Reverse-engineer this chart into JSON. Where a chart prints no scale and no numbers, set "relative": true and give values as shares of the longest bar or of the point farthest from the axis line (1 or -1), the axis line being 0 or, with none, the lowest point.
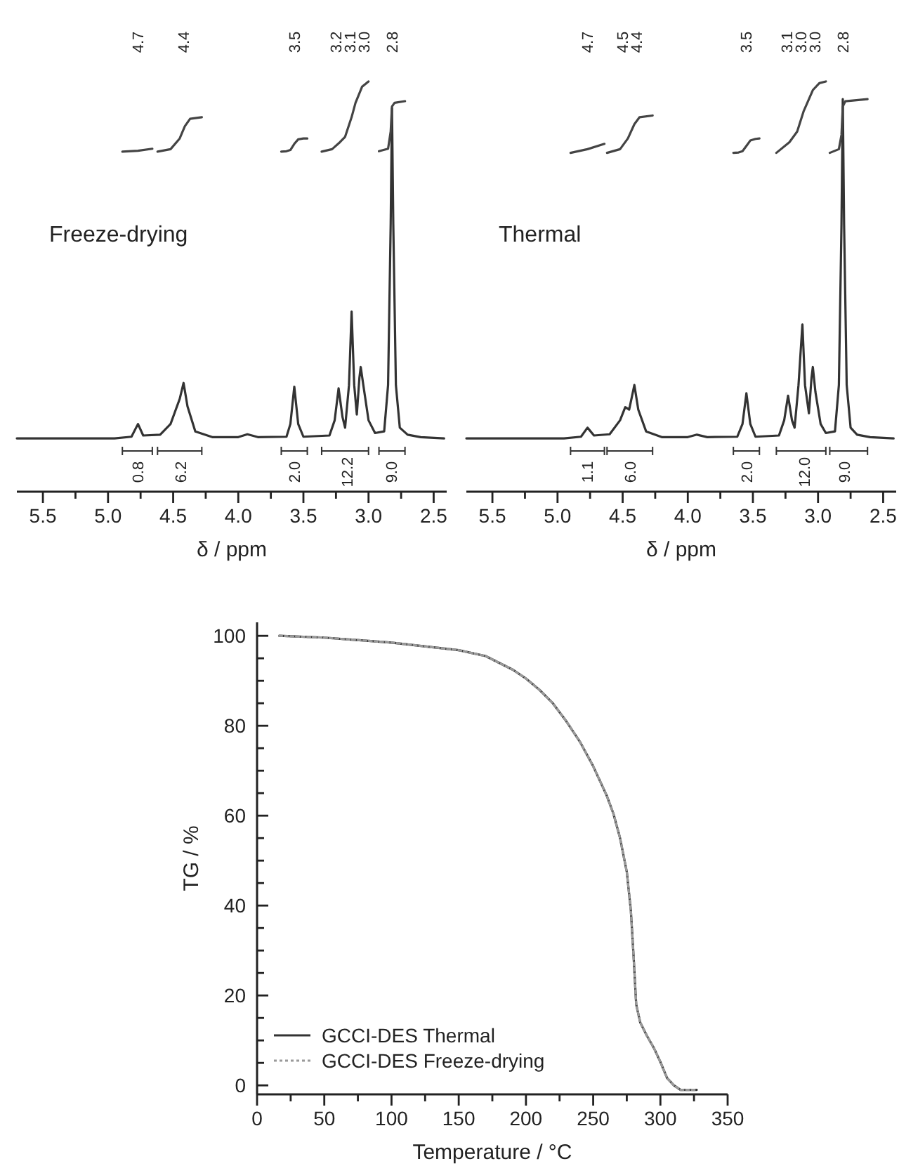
{
  "chart_data": [
    {
      "type": "line",
      "relative": true,
      "xlim": [
        5.7,
        2.4
      ],
      "xticks": [
        5.5,
        {
          "value": 5.25,
          "label": null
        },
        {
          "value": 5,
          "label": "5.0"
        },
        {
          "value": 4.75,
          "label": null
        },
        4.5,
        {
          "value": 4.25,
          "label": null
        },
        {
          "value": 4,
          "label": "4.0"
        },
        {
          "value": 3.75,
          "label": null
        },
        3.5,
        {
          "value": 3.25,
          "label": null
        },
        {
          "value": 3,
          "label": "3.0"
        },
        {
          "value": 2.75,
          "label": null
        },
        2.5
      ],
      "xlabel": "δ / ppm",
      "series": [
        {
          "color": "#333333",
          "x": [
            5.7,
            4.95,
            4.82,
            4.77,
            4.73,
            4.6,
            4.52,
            4.48,
            4.45,
            4.42,
            4.39,
            4.33,
            4.2,
            4.0,
            3.93,
            3.85,
            3.63,
            3.6,
            3.57,
            3.54,
            3.5,
            3.3,
            3.26,
            3.23,
            3.2,
            3.18,
            3.15,
            3.13,
            3.11,
            3.09,
            3.07,
            3.06,
            3.04,
            3.0,
            2.95,
            2.88,
            2.85,
            2.83,
            2.82,
            2.81,
            2.79,
            2.76,
            2.7,
            2.6,
            2.42
          ],
          "values": [
            0.13,
            0.13,
            0.134,
            0.165,
            0.137,
            0.139,
            0.165,
            0.2,
            0.226,
            0.265,
            0.208,
            0.147,
            0.133,
            0.133,
            0.14,
            0.133,
            0.134,
            0.165,
            0.256,
            0.165,
            0.134,
            0.137,
            0.174,
            0.252,
            0.182,
            0.156,
            0.26,
            0.439,
            0.26,
            0.188,
            0.278,
            0.304,
            0.26,
            0.174,
            0.143,
            0.147,
            0.26,
            0.652,
            0.935,
            0.652,
            0.26,
            0.156,
            0.139,
            0.133,
            0.13
          ]
        },
        {
          "color": "#444444",
          "x": [
            4.89,
            4.77,
            4.66,
            4.64,
            4.62,
            4.52,
            4.45,
            4.41,
            4.37,
            4.28,
            3.9,
            3.67,
            3.63,
            3.6,
            3.57,
            3.54,
            3.5,
            3.47,
            3.4,
            3.36,
            3.28,
            3.22,
            3.18,
            3.13,
            3.1,
            3.05,
            3.0,
            2.96,
            2.92,
            2.85,
            2.83,
            2.82,
            2.8,
            2.72
          ],
          "values": [
            0.829,
            0.831,
            0.836,
            null,
            0.829,
            0.835,
            0.861,
            0.891,
            0.909,
            0.913,
            null,
            0.829,
            0.83,
            0.833,
            0.848,
            0.859,
            0.861,
            0.861,
            null,
            0.829,
            0.835,
            0.852,
            0.865,
            0.913,
            0.948,
            0.987,
            1.0,
            null,
            0.83,
            0.836,
            0.878,
            0.939,
            0.948,
            0.952
          ]
        }
      ],
      "annotations": [
        "Freeze-drying",
        "4.7",
        "4.4",
        "3.5",
        "3.2",
        "3.1",
        "3.0",
        "2.8",
        "0.8",
        "6.2",
        "2.0",
        "12.2",
        "9.0"
      ]
    },
    {
      "type": "line",
      "relative": true,
      "xlim": [
        5.7,
        2.4
      ],
      "xticks": [
        5.5,
        {
          "value": 5.25,
          "label": null
        },
        {
          "value": 5,
          "label": "5.0"
        },
        {
          "value": 4.75,
          "label": null
        },
        4.5,
        {
          "value": 4.25,
          "label": null
        },
        {
          "value": 4,
          "label": "4.0"
        },
        {
          "value": 3.75,
          "label": null
        },
        3.5,
        {
          "value": 3.25,
          "label": null
        },
        {
          "value": 3,
          "label": "3.0"
        },
        {
          "value": 2.75,
          "label": null
        },
        2.5
      ],
      "xlabel": "δ / ppm",
      "series": [
        {
          "color": "#333333",
          "x": [
            5.7,
            4.95,
            4.82,
            4.77,
            4.72,
            4.6,
            4.52,
            4.48,
            4.45,
            4.41,
            4.38,
            4.32,
            4.2,
            4.0,
            3.93,
            3.85,
            3.62,
            3.58,
            3.55,
            3.52,
            3.48,
            3.3,
            3.26,
            3.23,
            3.2,
            3.18,
            3.15,
            3.12,
            3.1,
            3.07,
            3.05,
            3.04,
            3.02,
            2.98,
            2.94,
            2.87,
            2.84,
            2.82,
            2.81,
            2.8,
            2.78,
            2.75,
            2.7,
            2.6,
            2.42
          ],
          "values": [
            0.13,
            0.13,
            0.134,
            0.156,
            0.137,
            0.14,
            0.174,
            0.206,
            0.2,
            0.26,
            0.2,
            0.147,
            0.133,
            0.133,
            0.139,
            0.133,
            0.134,
            0.165,
            0.24,
            0.165,
            0.134,
            0.137,
            0.174,
            0.234,
            0.174,
            0.156,
            0.26,
            0.408,
            0.26,
            0.191,
            0.278,
            0.304,
            0.243,
            0.165,
            0.143,
            0.147,
            0.26,
            0.652,
            0.957,
            0.652,
            0.26,
            0.156,
            0.139,
            0.133,
            0.13
          ]
        },
        {
          "color": "#444444",
          "x": [
            4.9,
            4.77,
            4.64,
            4.63,
            4.62,
            4.52,
            4.46,
            4.41,
            4.37,
            4.27,
            3.9,
            3.65,
            3.61,
            3.58,
            3.55,
            3.52,
            3.48,
            3.45,
            3.4,
            3.32,
            3.22,
            3.16,
            3.11,
            3.07,
            3.04,
            2.99,
            2.94,
            2.92,
            2.91,
            2.84,
            2.82,
            2.81,
            2.79,
            2.62
          ],
          "values": [
            0.826,
            0.835,
            0.848,
            null,
            0.826,
            0.835,
            0.861,
            0.896,
            0.913,
            0.917,
            null,
            0.826,
            0.827,
            0.83,
            0.843,
            0.856,
            0.86,
            0.861,
            null,
            0.826,
            0.852,
            0.878,
            0.928,
            0.957,
            0.979,
            0.996,
            1.0,
            null,
            0.826,
            0.835,
            0.87,
            0.939,
            0.952,
            0.957
          ]
        }
      ],
      "annotations": [
        "Thermal",
        "4.7",
        "4.5",
        "4.4",
        "3.5",
        "3.1",
        "3.0",
        "3.0",
        "2.8",
        "1.1",
        "6.0",
        "2.0",
        "12.0",
        "9.0"
      ]
    },
    {
      "type": "line",
      "xlim": [
        0,
        350
      ],
      "ylim": [
        -2,
        103
      ],
      "xticks": [
        0,
        {
          "value": 25,
          "label": null
        },
        50,
        {
          "value": 75,
          "label": null
        },
        100,
        {
          "value": 125,
          "label": null
        },
        150,
        {
          "value": 175,
          "label": null
        },
        200,
        {
          "value": 225,
          "label": null
        },
        250,
        {
          "value": 275,
          "label": null
        },
        300,
        {
          "value": 325,
          "label": null
        },
        350
      ],
      "yticks": [
        0,
        {
          "value": 5,
          "label": null
        },
        {
          "value": 10,
          "label": null
        },
        {
          "value": 15,
          "label": null
        },
        20,
        {
          "value": 25,
          "label": null
        },
        {
          "value": 30,
          "label": null
        },
        {
          "value": 35,
          "label": null
        },
        40,
        {
          "value": 45,
          "label": null
        },
        {
          "value": 50,
          "label": null
        },
        {
          "value": 55,
          "label": null
        },
        60,
        {
          "value": 65,
          "label": null
        },
        {
          "value": 70,
          "label": null
        },
        {
          "value": 75,
          "label": null
        },
        80,
        {
          "value": 85,
          "label": null
        },
        {
          "value": 90,
          "label": null
        },
        {
          "value": 95,
          "label": null
        },
        100
      ],
      "xlabel": "Temperature / °C",
      "ylabel": "TG / %",
      "legend": "bottom left",
      "x": [
        16.5,
        50,
        100,
        150,
        170,
        190,
        200,
        210,
        220,
        230,
        240,
        250,
        260,
        265,
        270,
        275,
        278,
        280,
        282,
        285,
        290,
        295,
        300,
        305,
        310,
        315,
        320,
        327
      ],
      "series": [
        {
          "name": "GCCI-DES Thermal",
          "color": "#333333",
          "line_style": "solid",
          "values": [
            100,
            99.6,
            98.5,
            96.8,
            95.5,
            92.5,
            90.5,
            88,
            85,
            81,
            76.5,
            71,
            64.5,
            60.5,
            55,
            47.5,
            39,
            29,
            18,
            14,
            11,
            8.4,
            5.2,
            1.6,
            0,
            -1,
            -1,
            -1
          ]
        },
        {
          "name": "GCCI-DES Freeze-drying",
          "color": "#9a9a9a",
          "line_style": "dotted",
          "values": [
            100,
            99.6,
            98.5,
            96.8,
            95.5,
            92.5,
            90.5,
            88,
            85,
            81,
            76.5,
            71,
            64.5,
            60.5,
            55,
            47.5,
            39,
            29,
            18,
            14,
            11,
            8.4,
            5.2,
            1.6,
            0,
            -1,
            -1,
            -1
          ]
        }
      ]
    }
  ]
}
